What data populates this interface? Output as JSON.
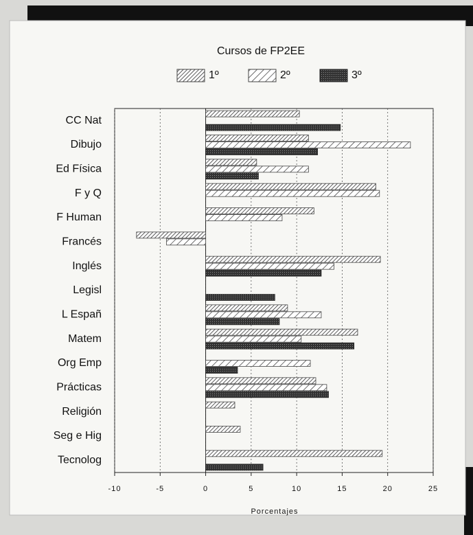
{
  "chart_data": {
    "type": "barh",
    "title": "Cursos de FP2EE",
    "xlabel": "Porcentajes",
    "categories": [
      "CC Nat",
      "Dibujo",
      "Ed Física",
      "F y Q",
      "F Human",
      "Francés",
      "Inglés",
      "Legisl",
      "L Españ",
      "Matem",
      "Org Emp",
      "Prácticas",
      "Religión",
      "Seg e Hig",
      "Tecnolog"
    ],
    "series": [
      {
        "name": "1º",
        "color": "#444444",
        "pattern": "fine-hatch",
        "values": [
          10.3,
          11.3,
          5.6,
          18.7,
          11.9,
          -7.6,
          19.2,
          null,
          9.0,
          16.7,
          null,
          12.1,
          3.2,
          3.8,
          19.4
        ]
      },
      {
        "name": "2º",
        "color": "#444444",
        "pattern": "wide-hatch",
        "values": [
          null,
          22.5,
          11.3,
          19.1,
          8.4,
          -4.3,
          14.1,
          null,
          12.7,
          10.5,
          11.5,
          13.3,
          null,
          null,
          null
        ]
      },
      {
        "name": "3º",
        "color": "#222222",
        "pattern": "cross-hatch",
        "values": [
          14.8,
          12.3,
          5.8,
          null,
          null,
          null,
          12.7,
          7.6,
          8.1,
          16.3,
          3.5,
          13.5,
          null,
          null,
          6.3
        ]
      }
    ],
    "xlim": [
      -10,
      25
    ],
    "xticks": [
      -10,
      -5,
      0,
      5,
      10,
      15,
      20,
      25
    ],
    "grid": true
  }
}
